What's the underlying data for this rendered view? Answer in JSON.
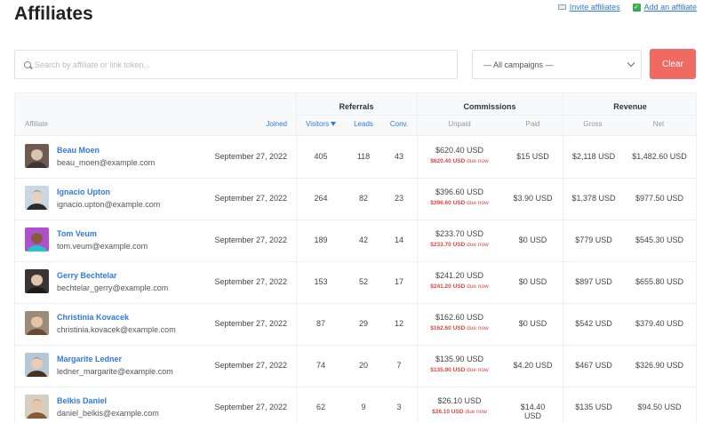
{
  "page": {
    "title": "Affiliates",
    "invite_label": "Invite affiliates",
    "add_label": "Add an affiliate"
  },
  "filters": {
    "search_placeholder": "Search by affiliate or link token...",
    "campaign_selected": "— All campaigns —",
    "clear_label": "Clear"
  },
  "table": {
    "groups": {
      "referrals": "Referrals",
      "commissions": "Commissions",
      "revenue": "Revenue"
    },
    "columns": {
      "affiliate": "Affiliate",
      "joined": "Joined",
      "visitors": "Visitors",
      "leads": "Leads",
      "conv": "Conv.",
      "unpaid": "Unpaid",
      "paid": "Paid",
      "gross": "Gross",
      "net": "Net"
    },
    "due_suffix": "due now",
    "rows": [
      {
        "name": "Beau Moen",
        "email": "beau_moen@example.com",
        "joined": "September 27, 2022",
        "visitors": "405",
        "leads": "118",
        "conv": "43",
        "unpaid": "$620.40 USD",
        "due": "$620.40 USD",
        "paid": "$15 USD",
        "gross": "$2,118 USD",
        "net": "$1,482.60 USD",
        "avatar_colors": [
          "#6e5a4e",
          "#d9c4b0",
          "#3c3733"
        ]
      },
      {
        "name": "Ignacio Upton",
        "email": "ignacio.upton@example.com",
        "joined": "September 27, 2022",
        "visitors": "264",
        "leads": "82",
        "conv": "23",
        "unpaid": "$396.60 USD",
        "due": "$396.60 USD",
        "paid": "$3.90 USD",
        "gross": "$1,378 USD",
        "net": "$977.50 USD",
        "avatar_colors": [
          "#c9d6e3",
          "#e8d2bf",
          "#2b2b2b"
        ]
      },
      {
        "name": "Tom Veum",
        "email": "tom.veum@example.com",
        "joined": "September 27, 2022",
        "visitors": "189",
        "leads": "42",
        "conv": "14",
        "unpaid": "$233.70 USD",
        "due": "$233.70 USD",
        "paid": "$0 USD",
        "gross": "$779 USD",
        "net": "$545.30 USD",
        "avatar_colors": [
          "#b04fd0",
          "#8a5a3f",
          "#22c6c9"
        ]
      },
      {
        "name": "Gerry Bechtelar",
        "email": "bechtelar_gerry@example.com",
        "joined": "September 27, 2022",
        "visitors": "153",
        "leads": "52",
        "conv": "17",
        "unpaid": "$241.20 USD",
        "due": "$241.20 USD",
        "paid": "$0 USD",
        "gross": "$897 USD",
        "net": "$655.80 USD",
        "avatar_colors": [
          "#3a3532",
          "#e0c3a8",
          "#1f1b19"
        ]
      },
      {
        "name": "Christinia Kovacek",
        "email": "christinia.kovacek@example.com",
        "joined": "September 27, 2022",
        "visitors": "87",
        "leads": "29",
        "conv": "12",
        "unpaid": "$162.60 USD",
        "due": "$162.60 USD",
        "paid": "$0 USD",
        "gross": "$542 USD",
        "net": "$379.40 USD",
        "avatar_colors": [
          "#9c8b7a",
          "#e5c4a6",
          "#6b4a33"
        ]
      },
      {
        "name": "Margarite Ledner",
        "email": "ledner_margarite@example.com",
        "joined": "September 27, 2022",
        "visitors": "74",
        "leads": "20",
        "conv": "7",
        "unpaid": "$135.90 USD",
        "due": "$135.90 USD",
        "paid": "$4.20 USD",
        "gross": "$467 USD",
        "net": "$326.90 USD",
        "avatar_colors": [
          "#b5c8d8",
          "#e9cdb5",
          "#4a3020"
        ]
      },
      {
        "name": "Belkis Daniel",
        "email": "daniel_belkis@example.com",
        "joined": "September 27, 2022",
        "visitors": "62",
        "leads": "9",
        "conv": "3",
        "unpaid": "$26.10 USD",
        "due": "$26.10 USD",
        "paid": "$14.40 USD",
        "gross": "$135 USD",
        "net": "$94.50 USD",
        "avatar_colors": [
          "#d8cfc3",
          "#e6c7ab",
          "#8a5a34"
        ]
      }
    ]
  }
}
